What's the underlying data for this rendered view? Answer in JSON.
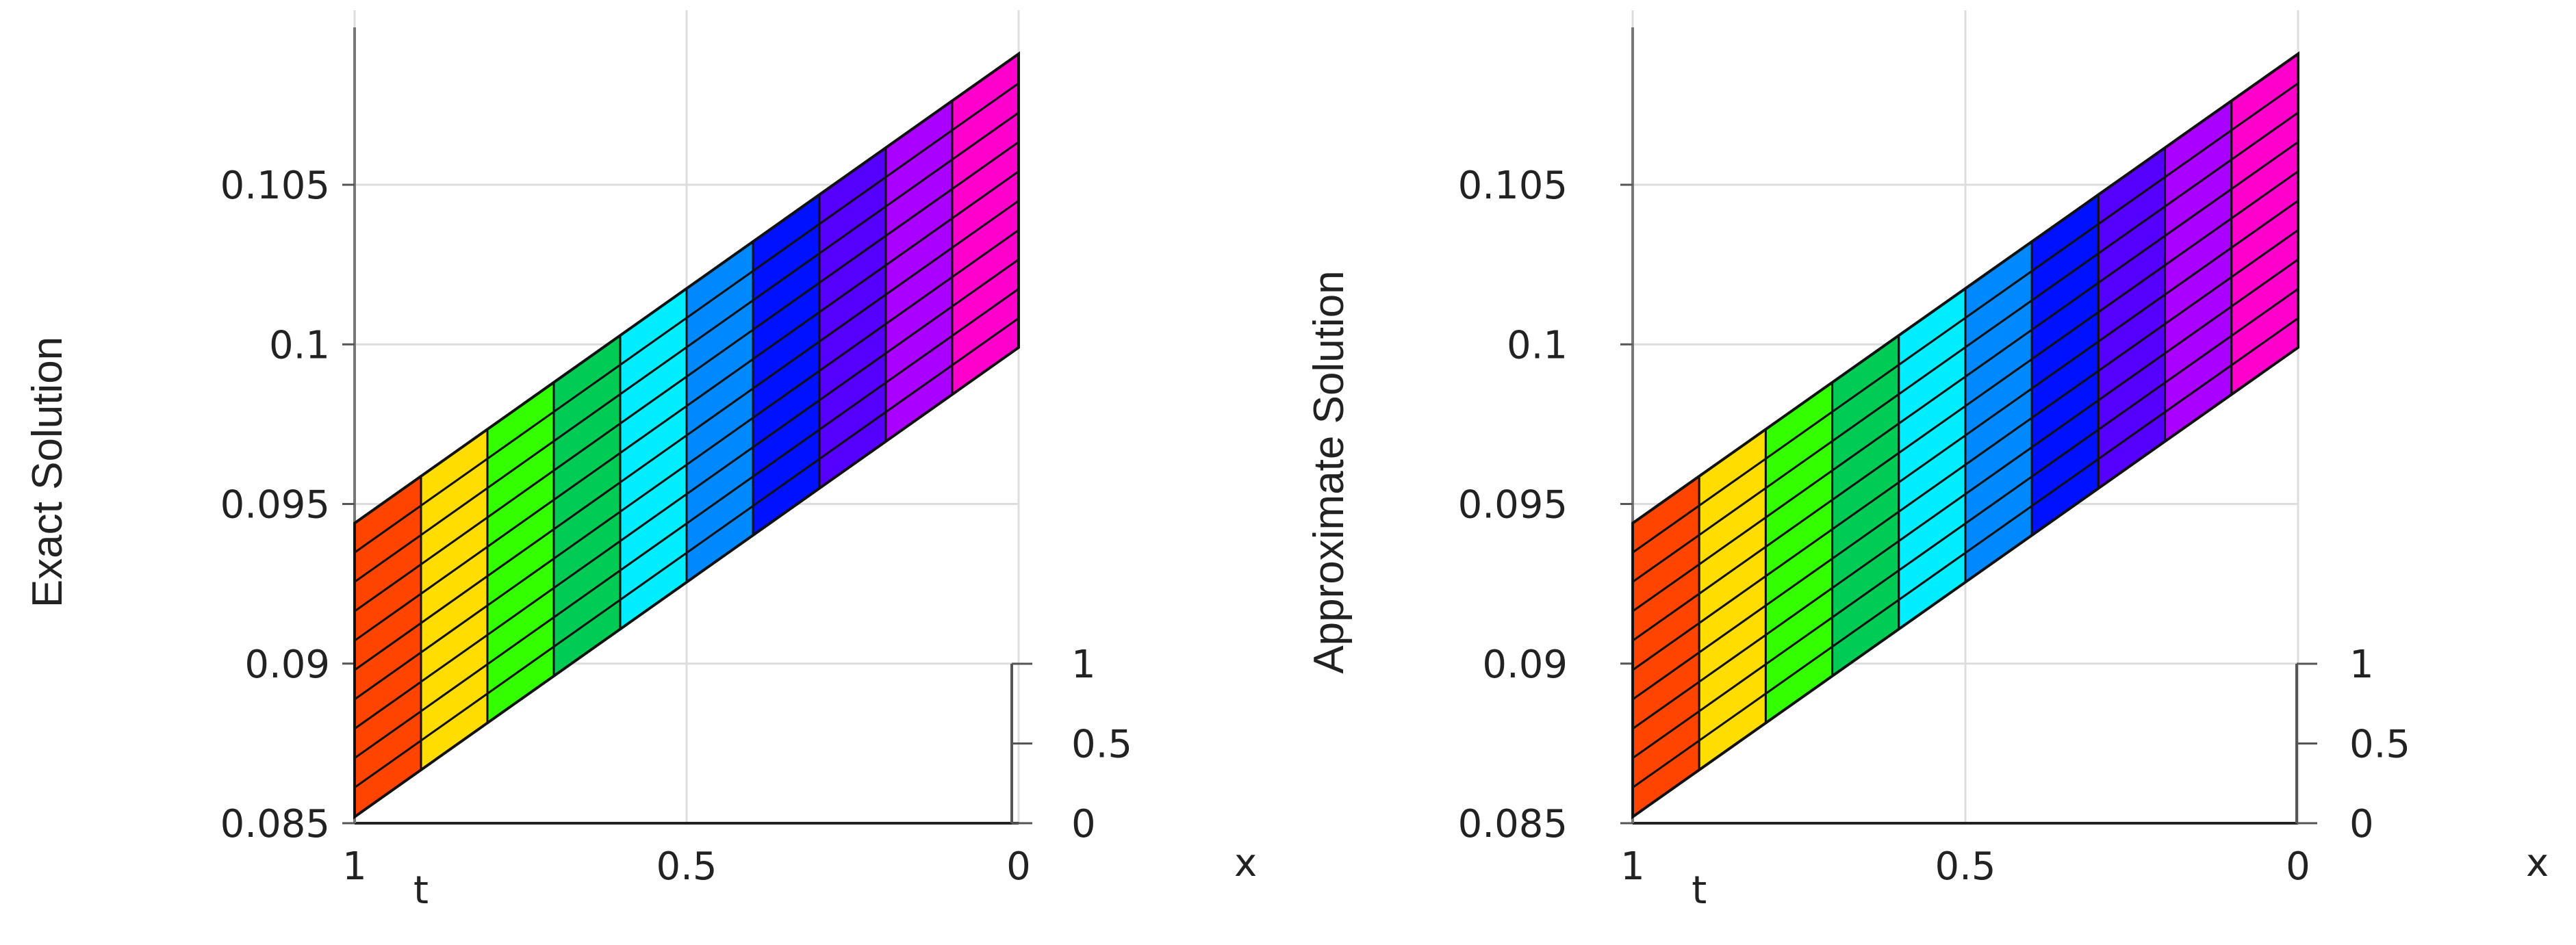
{
  "chart_data": [
    {
      "type": "surface",
      "zlabel": "Exact Solution",
      "xlabel": "t",
      "ylabel": "x",
      "t_ticks": [
        "1",
        "0.5",
        "0"
      ],
      "x_ticks": [
        "1",
        "0.5",
        "0"
      ],
      "z_ticks": [
        "0.085",
        "0.09",
        "0.095",
        "0.1",
        "0.105"
      ],
      "t_range": [
        1,
        0
      ],
      "x_range": [
        0,
        1
      ],
      "zlim": [
        0.085,
        0.11
      ],
      "grid": true,
      "colormap": "hsv",
      "t_grid": [
        1,
        0.9,
        0.8,
        0.7,
        0.6,
        0.5,
        0.4,
        0.3,
        0.2,
        0.1,
        0
      ],
      "x_grid": [
        0,
        0.1,
        0.2,
        0.3,
        0.4,
        0.5,
        0.6,
        0.7,
        0.8,
        0.9,
        1
      ],
      "z_corners": {
        "t1_x0": 0.0852,
        "t1_x1": 0.0944,
        "t0_x0": 0.0999,
        "t0_x1": 0.1091
      },
      "colors": [
        "#ff4400",
        "#ffdd00",
        "#33ff00",
        "#00cc55",
        "#00eeff",
        "#0088ff",
        "#0011ff",
        "#5500ff",
        "#aa00ff",
        "#ff00cc",
        "#ff0033"
      ]
    },
    {
      "type": "surface",
      "zlabel": "Approximate Solution",
      "xlabel": "t",
      "ylabel": "x",
      "t_ticks": [
        "1",
        "0.5",
        "0"
      ],
      "x_ticks": [
        "1",
        "0.5",
        "0"
      ],
      "z_ticks": [
        "0.085",
        "0.09",
        "0.095",
        "0.1",
        "0.105"
      ],
      "t_range": [
        1,
        0
      ],
      "x_range": [
        0,
        1
      ],
      "zlim": [
        0.085,
        0.11
      ],
      "grid": true,
      "colormap": "hsv",
      "t_grid": [
        1,
        0.9,
        0.8,
        0.7,
        0.6,
        0.5,
        0.4,
        0.3,
        0.2,
        0.1,
        0
      ],
      "x_grid": [
        0,
        0.1,
        0.2,
        0.3,
        0.4,
        0.5,
        0.6,
        0.7,
        0.8,
        0.9,
        1
      ],
      "z_corners": {
        "t1_x0": 0.0852,
        "t1_x1": 0.0944,
        "t0_x0": 0.0999,
        "t0_x1": 0.1091
      },
      "colors": [
        "#ff4400",
        "#ffdd00",
        "#33ff00",
        "#00cc55",
        "#00eeff",
        "#0088ff",
        "#0011ff",
        "#5500ff",
        "#aa00ff",
        "#ff00cc",
        "#ff0033"
      ]
    }
  ]
}
